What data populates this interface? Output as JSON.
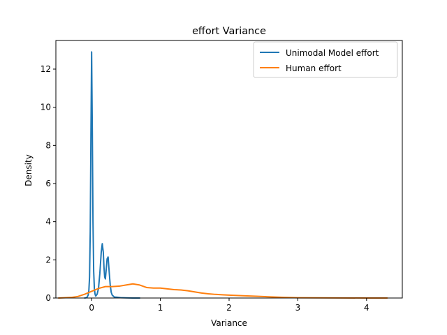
{
  "chart_data": {
    "type": "line",
    "title": "effort Variance",
    "xlabel": "Variance",
    "ylabel": "Density",
    "xlim": [
      -0.52,
      4.52
    ],
    "ylim": [
      0,
      13.5
    ],
    "xticks": [
      0,
      1,
      2,
      3,
      4
    ],
    "yticks": [
      0,
      2,
      4,
      6,
      8,
      10,
      12
    ],
    "grid": false,
    "legend_position": "top-right",
    "series": [
      {
        "name": "Unimodal Model effort",
        "color": "#1f77b4",
        "points": [
          [
            -0.1,
            0.0
          ],
          [
            -0.07,
            0.02
          ],
          [
            -0.05,
            0.15
          ],
          [
            -0.04,
            0.4
          ],
          [
            -0.03,
            1.1
          ],
          [
            -0.02,
            3.5
          ],
          [
            -0.01,
            8.5
          ],
          [
            0.0,
            12.9
          ],
          [
            0.01,
            8.8
          ],
          [
            0.02,
            4.0
          ],
          [
            0.03,
            1.4
          ],
          [
            0.04,
            0.5
          ],
          [
            0.05,
            0.2
          ],
          [
            0.06,
            0.1
          ],
          [
            0.08,
            0.2
          ],
          [
            0.1,
            0.5
          ],
          [
            0.12,
            1.3
          ],
          [
            0.14,
            2.4
          ],
          [
            0.155,
            2.85
          ],
          [
            0.17,
            2.4
          ],
          [
            0.18,
            1.6
          ],
          [
            0.19,
            1.1
          ],
          [
            0.2,
            1.0
          ],
          [
            0.21,
            1.4
          ],
          [
            0.225,
            2.05
          ],
          [
            0.24,
            2.15
          ],
          [
            0.255,
            1.4
          ],
          [
            0.27,
            0.7
          ],
          [
            0.285,
            0.3
          ],
          [
            0.3,
            0.15
          ],
          [
            0.33,
            0.05
          ],
          [
            0.37,
            0.04
          ],
          [
            0.42,
            0.02
          ],
          [
            0.5,
            0.01
          ],
          [
            0.6,
            0.0
          ],
          [
            0.7,
            0.0
          ]
        ]
      },
      {
        "name": "Human effort",
        "color": "#ff7f0e",
        "points": [
          [
            -0.48,
            0.0
          ],
          [
            -0.3,
            0.03
          ],
          [
            -0.2,
            0.08
          ],
          [
            -0.1,
            0.2
          ],
          [
            0.0,
            0.35
          ],
          [
            0.1,
            0.5
          ],
          [
            0.2,
            0.6
          ],
          [
            0.3,
            0.6
          ],
          [
            0.4,
            0.62
          ],
          [
            0.5,
            0.68
          ],
          [
            0.6,
            0.74
          ],
          [
            0.7,
            0.68
          ],
          [
            0.8,
            0.55
          ],
          [
            0.9,
            0.52
          ],
          [
            1.0,
            0.52
          ],
          [
            1.1,
            0.48
          ],
          [
            1.2,
            0.44
          ],
          [
            1.3,
            0.42
          ],
          [
            1.4,
            0.38
          ],
          [
            1.5,
            0.32
          ],
          [
            1.6,
            0.26
          ],
          [
            1.7,
            0.22
          ],
          [
            1.8,
            0.19
          ],
          [
            1.9,
            0.17
          ],
          [
            2.0,
            0.15
          ],
          [
            2.2,
            0.12
          ],
          [
            2.4,
            0.09
          ],
          [
            2.6,
            0.06
          ],
          [
            2.8,
            0.03
          ],
          [
            3.0,
            0.015
          ],
          [
            3.3,
            0.008
          ],
          [
            3.6,
            0.004
          ],
          [
            4.0,
            0.001
          ],
          [
            4.3,
            0.0
          ]
        ]
      }
    ]
  }
}
